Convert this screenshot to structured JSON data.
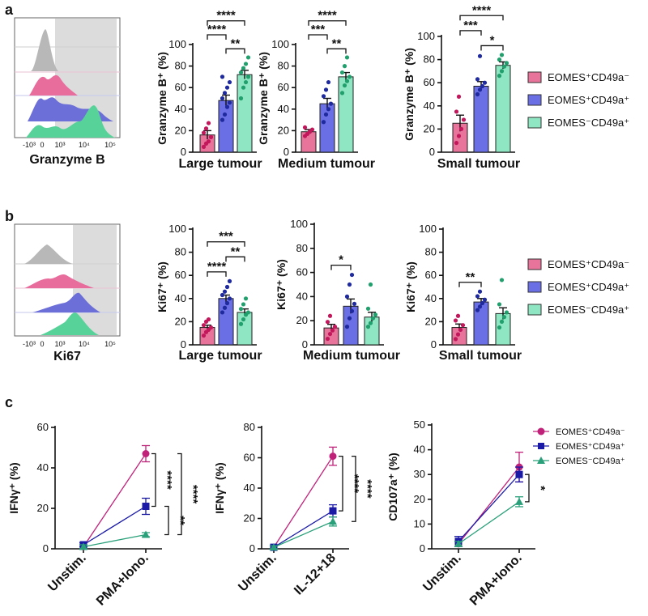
{
  "colors": {
    "pink": "#e8739b",
    "pink_dot": "#c2185b",
    "blue": "#6b6fe6",
    "blue_dot": "#1f2a9e",
    "green": "#8fe6c2",
    "green_dot": "#21a06e",
    "line_c1": "#c0227a",
    "line_c2": "#1a1aa6",
    "line_c3": "#2aa07a",
    "line_c3_dark": "#2e7d32",
    "hist_gray": "#b8b8b8",
    "hist_pink": "#e86c9c",
    "hist_blue": "#6d6fd8",
    "hist_green": "#57d39a",
    "shade": "#dcdcdc"
  },
  "panels": {
    "a": "a",
    "b": "b",
    "c": "c"
  },
  "legend_ab": [
    "EOMES⁺CD49a⁻",
    "EOMES⁺CD49a⁺",
    "EOMES⁻CD49a⁺"
  ],
  "legend_c": [
    "EOMES⁺CD49a⁻",
    "EOMES⁺CD49a⁺",
    "EOMES⁻CD49a⁺"
  ],
  "flow_a": {
    "xlabel": "Granzyme B",
    "ticks": [
      "-10³",
      "0",
      "10³",
      "10⁴",
      "10⁵"
    ]
  },
  "flow_b": {
    "xlabel": "Ki67",
    "ticks": [
      "-10³",
      "0",
      "10³",
      "10⁴",
      "10⁵"
    ]
  },
  "chart_data": [
    {
      "id": "a1",
      "type": "bar",
      "title": "",
      "xlabel": "Large tumour",
      "ylabel": "Granzyme B⁺ (%)",
      "ylim": [
        0,
        100
      ],
      "yticks": [
        0,
        20,
        40,
        60,
        80,
        100
      ],
      "categories": [
        "EOMES⁺CD49a⁻",
        "EOMES⁺CD49a⁺",
        "EOMES⁻CD49a⁺"
      ],
      "values": [
        16,
        48,
        72
      ],
      "sem": [
        4,
        5,
        4
      ],
      "points": [
        [
          5,
          8,
          10,
          14,
          18,
          22,
          27
        ],
        [
          30,
          35,
          42,
          46,
          50,
          55,
          60,
          65,
          70
        ],
        [
          50,
          60,
          65,
          70,
          74,
          78,
          82,
          88
        ]
      ],
      "significance": [
        {
          "label": "****",
          "from": 0,
          "to": 2
        },
        {
          "label": "**",
          "from": 1,
          "to": 2
        },
        {
          "label": "****",
          "from": 0,
          "to": 1
        }
      ]
    },
    {
      "id": "a2",
      "type": "bar",
      "title": "",
      "xlabel": "Medium tumour",
      "ylabel": "Granzyme B⁺ (%)",
      "ylim": [
        0,
        100
      ],
      "yticks": [
        0,
        20,
        40,
        60,
        80,
        100
      ],
      "categories": [
        "EOMES⁺CD49a⁻",
        "EOMES⁺CD49a⁺",
        "EOMES⁻CD49a⁺"
      ],
      "values": [
        19,
        45,
        70
      ],
      "sem": [
        2,
        5,
        4
      ],
      "points": [
        [
          15,
          17,
          19,
          21,
          23
        ],
        [
          28,
          35,
          40,
          45,
          52,
          58,
          65
        ],
        [
          55,
          62,
          66,
          70,
          74,
          80,
          88
        ]
      ],
      "significance": [
        {
          "label": "****",
          "from": 0,
          "to": 2
        },
        {
          "label": "**",
          "from": 1,
          "to": 2
        },
        {
          "label": "***",
          "from": 0,
          "to": 1
        }
      ]
    },
    {
      "id": "a3",
      "type": "bar",
      "title": "",
      "xlabel": "Small tumour",
      "ylabel": "Granzyme B⁺ (%)",
      "ylim": [
        0,
        100
      ],
      "yticks": [
        0,
        20,
        40,
        60,
        80,
        100
      ],
      "categories": [
        "EOMES⁺CD49a⁻",
        "EOMES⁺CD49a⁺",
        "EOMES⁻CD49a⁺"
      ],
      "values": [
        25,
        57,
        75
      ],
      "sem": [
        7,
        4,
        3
      ],
      "points": [
        [
          8,
          14,
          20,
          28,
          35,
          48
        ],
        [
          50,
          54,
          57,
          60,
          63,
          83
        ],
        [
          66,
          70,
          74,
          77,
          80,
          84
        ]
      ],
      "significance": [
        {
          "label": "****",
          "from": 0,
          "to": 2
        },
        {
          "label": "*",
          "from": 1,
          "to": 2
        },
        {
          "label": "***",
          "from": 0,
          "to": 1
        }
      ]
    },
    {
      "id": "b1",
      "type": "bar",
      "title": "",
      "xlabel": "Large tumour",
      "ylabel": "Ki67⁺ (%)",
      "ylim": [
        0,
        100
      ],
      "yticks": [
        0,
        20,
        40,
        60,
        80,
        100
      ],
      "categories": [
        "EOMES⁺CD49a⁻",
        "EOMES⁺CD49a⁺",
        "EOMES⁻CD49a⁺"
      ],
      "values": [
        15,
        40,
        28
      ],
      "sem": [
        2,
        3,
        3
      ],
      "points": [
        [
          8,
          11,
          13,
          15,
          17,
          20,
          22
        ],
        [
          28,
          32,
          36,
          40,
          43,
          46,
          50,
          55
        ],
        [
          18,
          22,
          26,
          28,
          31,
          35,
          40
        ]
      ],
      "significance": [
        {
          "label": "***",
          "from": 0,
          "to": 2
        },
        {
          "label": "****",
          "from": 0,
          "to": 1
        },
        {
          "label": "**",
          "from": 1,
          "to": 2
        }
      ]
    },
    {
      "id": "b2",
      "type": "bar",
      "title": "",
      "xlabel": "Medium tumour",
      "ylabel": "Ki67⁺ (%)",
      "ylim": [
        0,
        100
      ],
      "yticks": [
        0,
        20,
        40,
        60,
        80,
        100
      ],
      "categories": [
        "EOMES⁺CD49a⁻",
        "EOMES⁺CD49a⁺",
        "EOMES⁻CD49a⁺"
      ],
      "values": [
        14,
        32,
        23
      ],
      "sem": [
        3,
        6,
        4
      ],
      "points": [
        [
          5,
          9,
          12,
          15,
          19,
          24
        ],
        [
          15,
          22,
          28,
          34,
          40,
          50,
          58
        ],
        [
          15,
          18,
          22,
          25,
          30,
          50
        ]
      ],
      "significance": [
        {
          "label": "*",
          "from": 0,
          "to": 1
        }
      ]
    },
    {
      "id": "b3",
      "type": "bar",
      "title": "",
      "xlabel": "Small tumour",
      "ylabel": "Ki67⁺ (%)",
      "ylim": [
        0,
        100
      ],
      "yticks": [
        0,
        20,
        40,
        60,
        80,
        100
      ],
      "categories": [
        "EOMES⁺CD49a⁻",
        "EOMES⁺CD49a⁺",
        "EOMES⁻CD49a⁺"
      ],
      "values": [
        15,
        37,
        27
      ],
      "sem": [
        3,
        3,
        5
      ],
      "points": [
        [
          5,
          9,
          13,
          17,
          21,
          25
        ],
        [
          30,
          33,
          36,
          39,
          42,
          46
        ],
        [
          15,
          20,
          24,
          28,
          35,
          56
        ]
      ],
      "significance": [
        {
          "label": "**",
          "from": 0,
          "to": 1
        }
      ]
    },
    {
      "id": "c1",
      "type": "line",
      "title": "",
      "xlabel": "",
      "ylabel": "IFNγ⁺ (%)",
      "ylim": [
        0,
        60
      ],
      "yticks": [
        0,
        20,
        40,
        60
      ],
      "categories": [
        "Unstim.",
        "PMA+Iono."
      ],
      "series": [
        {
          "name": "EOMES⁺CD49a⁻",
          "values": [
            1,
            47
          ],
          "err": [
            1,
            4
          ]
        },
        {
          "name": "EOMES⁺CD49a⁺",
          "values": [
            2,
            21
          ],
          "err": [
            1,
            4
          ]
        },
        {
          "name": "EOMES⁻CD49a⁺",
          "values": [
            1,
            7
          ],
          "err": [
            1,
            1
          ]
        }
      ],
      "significance": [
        {
          "label": "****",
          "from": 0,
          "to": 1
        },
        {
          "label": "**",
          "from": 1,
          "to": 2
        },
        {
          "label": "****",
          "from": 0,
          "to": 2
        }
      ]
    },
    {
      "id": "c2",
      "type": "line",
      "title": "",
      "xlabel": "",
      "ylabel": "IFNγ⁺ (%)",
      "ylim": [
        0,
        80
      ],
      "yticks": [
        0,
        20,
        40,
        60,
        80
      ],
      "categories": [
        "Unstim.",
        "IL-12+18"
      ],
      "series": [
        {
          "name": "EOMES⁺CD49a⁻",
          "values": [
            1,
            61
          ],
          "err": [
            1,
            6
          ]
        },
        {
          "name": "EOMES⁺CD49a⁺",
          "values": [
            1,
            25
          ],
          "err": [
            1,
            4
          ]
        },
        {
          "name": "EOMES⁻CD49a⁺",
          "values": [
            1,
            18
          ],
          "err": [
            1,
            3
          ]
        }
      ],
      "significance": [
        {
          "label": "****",
          "from": 0,
          "to": 1
        },
        {
          "label": "****",
          "from": 0,
          "to": 2
        }
      ]
    },
    {
      "id": "c3",
      "type": "line",
      "title": "",
      "xlabel": "",
      "ylabel": "CD107a⁺ (%)",
      "ylim": [
        0,
        50
      ],
      "yticks": [
        0,
        10,
        20,
        30,
        40,
        50
      ],
      "categories": [
        "Unstim.",
        "PMA+Iono."
      ],
      "series": [
        {
          "name": "EOMES⁺CD49a⁻",
          "values": [
            2,
            33
          ],
          "err": [
            1,
            6
          ]
        },
        {
          "name": "EOMES⁺CD49a⁺",
          "values": [
            3,
            30
          ],
          "err": [
            2,
            3
          ]
        },
        {
          "name": "EOMES⁻CD49a⁺",
          "values": [
            2,
            19
          ],
          "err": [
            1,
            2
          ]
        }
      ],
      "significance": [
        {
          "label": "*",
          "from": 1,
          "to": 2
        }
      ]
    }
  ]
}
